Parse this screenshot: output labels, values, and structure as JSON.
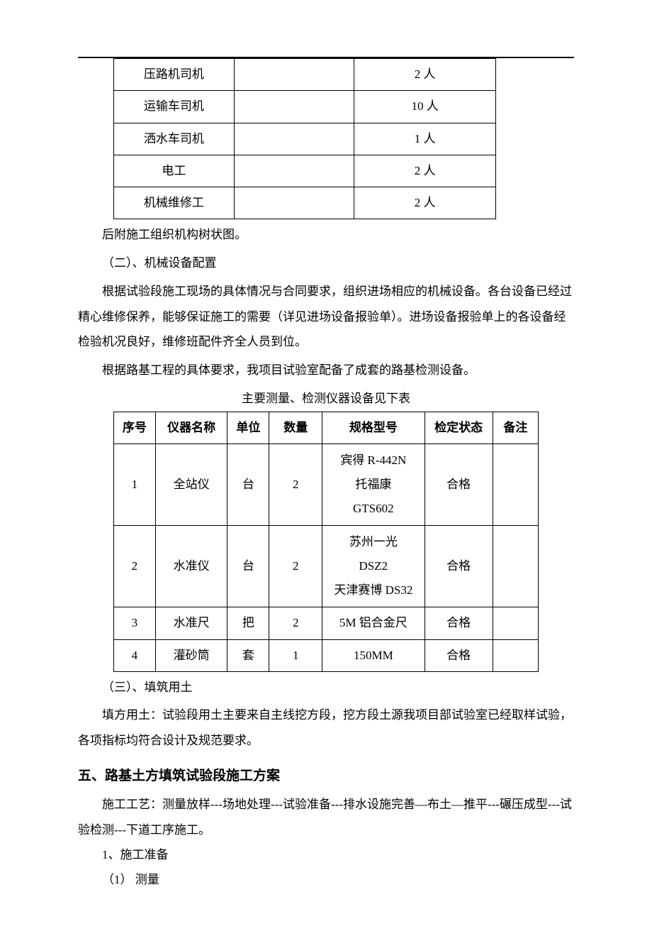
{
  "table1": {
    "rows": [
      {
        "role": "压路机司机",
        "blank": "",
        "count": "2 人"
      },
      {
        "role": "运输车司机",
        "blank": "",
        "count": "10 人"
      },
      {
        "role": "洒水车司机",
        "blank": "",
        "count": "1 人"
      },
      {
        "role": "电工",
        "blank": "",
        "count": "2 人"
      },
      {
        "role": "机械维修工",
        "blank": "",
        "count": "2 人"
      }
    ]
  },
  "p1": "后附施工组织机构树状图。",
  "p2": "（二）、机械设备配置",
  "p3": "根据试验段施工现场的具体情况与合同要求，组织进场相应的机械设备。各台设备已经过精心维修保养，能够保证施工的需要（详见进场设备报验单）。进场设备报验单上的各设备经检验机况良好，维修班配件齐全人员到位。",
  "p4": "根据路基工程的具体要求，我项目试验室配备了成套的路基检测设备。",
  "table2_caption": "主要测量、检测仪器设备见下表",
  "table2": {
    "headers": {
      "seq": "序号",
      "name": "仪器名称",
      "unit": "单位",
      "qty": "数量",
      "model": "规格型号",
      "status": "检定状态",
      "note": "备注"
    },
    "rows": [
      {
        "seq": "1",
        "name": "全站仪",
        "unit": "台",
        "qty": "2",
        "model": "宾得 R-442N\n托福康\nGTS602",
        "status": "合格",
        "note": ""
      },
      {
        "seq": "2",
        "name": "水准仪",
        "unit": "台",
        "qty": "2",
        "model": "苏州一光\nDSZ2\n天津赛博 DS32",
        "status": "合格",
        "note": ""
      },
      {
        "seq": "3",
        "name": "水准尺",
        "unit": "把",
        "qty": "2",
        "model": "5M 铝合金尺",
        "status": "合格",
        "note": ""
      },
      {
        "seq": "4",
        "name": "灌砂筒",
        "unit": "套",
        "qty": "1",
        "model": "150MM",
        "status": "合格",
        "note": ""
      }
    ]
  },
  "p5": "（三）、填筑用土",
  "p6": "填方用土：试验段用土主要来自主线挖方段，挖方段土源我项目部试验室已经取样试验，各项指标均符合设计及规范要求。",
  "h5": "五、路基土方填筑试验段施工方案",
  "p7": "施工工艺：测量放样---场地处理---试验准备---排水设施完善—布土—推平---碾压成型---试验检测---下道工序施工。",
  "p8": "1、施工准备",
  "p9": "（1） 测量"
}
